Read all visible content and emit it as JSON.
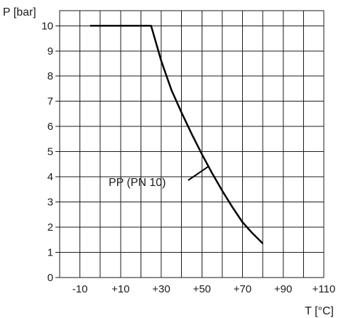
{
  "chart_data": {
    "type": "line",
    "ylabel": "P [bar]",
    "xlabel": "T [°C]",
    "xlim": [
      -20,
      110
    ],
    "ylim": [
      0,
      10.6
    ],
    "grid": true,
    "x_ticks": [
      {
        "value": -10,
        "label": "-10"
      },
      {
        "value": 10,
        "label": "+10"
      },
      {
        "value": 30,
        "label": "+30"
      },
      {
        "value": 50,
        "label": "+50"
      },
      {
        "value": 70,
        "label": "+70"
      },
      {
        "value": 90,
        "label": "+90"
      },
      {
        "value": 110,
        "label": "+110"
      }
    ],
    "y_ticks": [
      {
        "value": 0,
        "label": "0"
      },
      {
        "value": 1,
        "label": "1"
      },
      {
        "value": 2,
        "label": "2"
      },
      {
        "value": 3,
        "label": "3"
      },
      {
        "value": 4,
        "label": "4"
      },
      {
        "value": 5,
        "label": "5"
      },
      {
        "value": 6,
        "label": "6"
      },
      {
        "value": 7,
        "label": "7"
      },
      {
        "value": 8,
        "label": "8"
      },
      {
        "value": 9,
        "label": "9"
      },
      {
        "value": 10,
        "label": "10"
      }
    ],
    "series": [
      {
        "name": "PP (PN 10)",
        "x": [
          -5,
          0,
          5,
          10,
          15,
          20,
          25,
          30,
          35,
          40,
          45,
          50,
          55,
          60,
          65,
          70,
          75,
          80
        ],
        "y": [
          10,
          10,
          10,
          10,
          10,
          10,
          10,
          8.6,
          7.45,
          6.55,
          5.7,
          4.9,
          4.15,
          3.45,
          2.8,
          2.2,
          1.75,
          1.35
        ]
      }
    ],
    "annotation": {
      "text": "PP (PN 10)",
      "points_to": {
        "x": 53,
        "y": 4.4
      }
    }
  },
  "colors": {
    "line": "#000000",
    "grid": "#1a1a1a"
  }
}
